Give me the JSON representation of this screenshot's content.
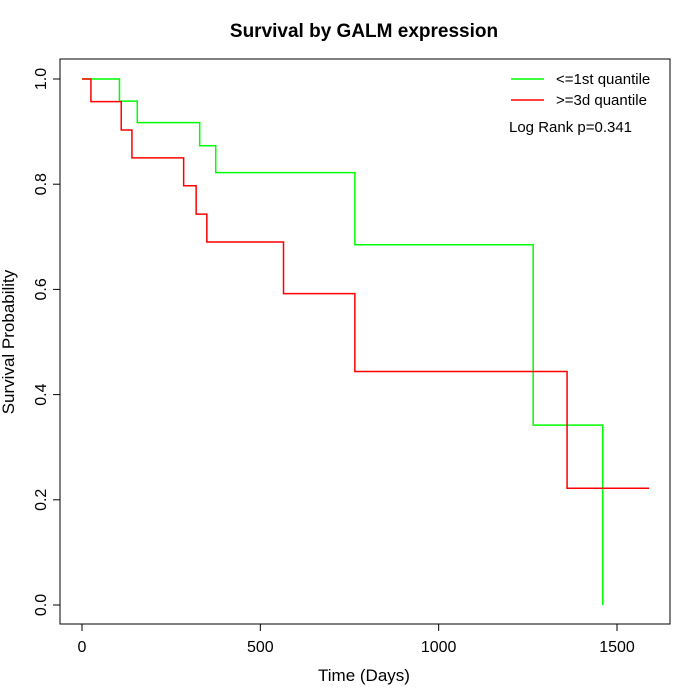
{
  "chart_data": {
    "type": "line",
    "title": "Survival by GALM expression",
    "xlabel": "Time (Days)",
    "ylabel": "Survival Probability",
    "xlim": [
      0,
      1600
    ],
    "ylim": [
      0,
      1
    ],
    "x_ticks": [
      0,
      500,
      1000,
      1500
    ],
    "y_ticks": [
      0.0,
      0.2,
      0.4,
      0.6,
      0.8,
      1.0
    ],
    "x_tick_labels": [
      "0",
      "500",
      "1000",
      "1500"
    ],
    "y_tick_labels": [
      "0.0",
      "0.2",
      "0.4",
      "0.6",
      "0.8",
      "1.0"
    ],
    "grid": false,
    "legend_position": "top-right",
    "annotation": "Log Rank p=0.341",
    "series": [
      {
        "name": "<=1st quantile",
        "color": "#00ff00",
        "step": true,
        "x": [
          0,
          105,
          155,
          330,
          375,
          765,
          1265,
          1460,
          1460
        ],
        "y": [
          1.0,
          0.958,
          0.917,
          0.873,
          0.822,
          0.685,
          0.342,
          0.342,
          0.0
        ]
      },
      {
        "name": ">=3d quantile",
        "color": "#ff0000",
        "step": true,
        "x": [
          0,
          25,
          110,
          140,
          285,
          320,
          350,
          565,
          765,
          1360,
          1590
        ],
        "y": [
          1.0,
          0.957,
          0.903,
          0.85,
          0.797,
          0.743,
          0.69,
          0.592,
          0.444,
          0.222,
          0.222
        ]
      }
    ]
  }
}
